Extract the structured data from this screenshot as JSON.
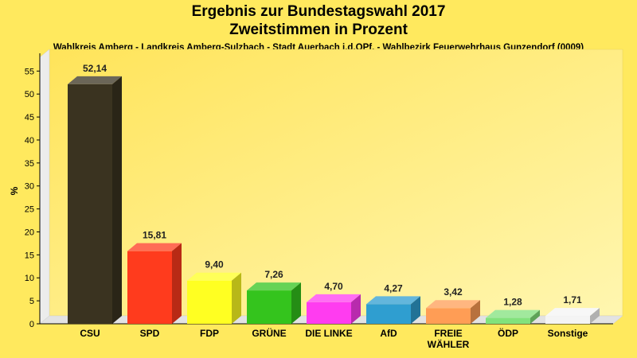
{
  "chart_data": {
    "type": "bar",
    "title": "Ergebnis zur Bundestagswahl 2017",
    "title2": "Zweitstimmen in Prozent",
    "subtitle": "Wahlkreis Amberg - Landkreis Amberg-Sulzbach - Stadt Auerbach i.d.OPf. - Wahlbezirk Feuerwehrhaus Gunzendorf (0009)",
    "ylabel": "%",
    "ylim": [
      0,
      58
    ],
    "yticks": [
      0,
      5,
      10,
      15,
      20,
      25,
      30,
      35,
      40,
      45,
      50,
      55
    ],
    "categories": [
      "CSU",
      "SPD",
      "FDP",
      "GRÜNE",
      "DIE LINKE",
      "AfD",
      "FREIE WÄHLER",
      "ÖDP",
      "Sonstige"
    ],
    "category_lines": [
      [
        "CSU"
      ],
      [
        "SPD"
      ],
      [
        "FDP"
      ],
      [
        "GRÜNE"
      ],
      [
        "DIE LINKE"
      ],
      [
        "AfD"
      ],
      [
        "FREIE",
        "WÄHLER"
      ],
      [
        "ÖDP"
      ],
      [
        "Sonstige"
      ]
    ],
    "values": [
      52.14,
      15.81,
      9.4,
      7.26,
      4.7,
      4.27,
      3.42,
      1.28,
      1.71
    ],
    "value_labels": [
      "52,14",
      "15,81",
      "9,40",
      "7,26",
      "4,70",
      "4,27",
      "3,42",
      "1,28",
      "1,71"
    ],
    "colors": [
      "#3a3320",
      "#ff3b1d",
      "#ffff22",
      "#34c41d",
      "#ff3cf0",
      "#2f9ed0",
      "#ff9d55",
      "#82e27c",
      "#f4f4f4"
    ],
    "legend": "none",
    "grid": false
  }
}
